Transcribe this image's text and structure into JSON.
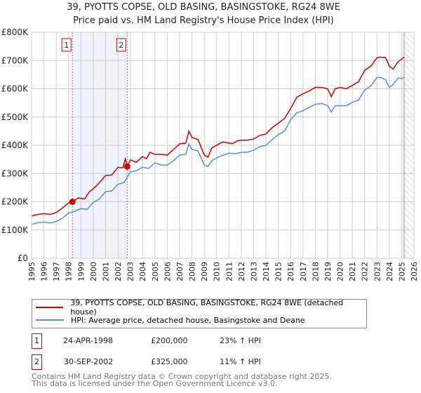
{
  "chart_data": {
    "type": "line",
    "title": "39, PYOTTS COPSE, OLD BASING, BASINGSTOKE, RG24 8WE",
    "subtitle": "Price paid vs. HM Land Registry's House Price Index (HPI)",
    "xlim": [
      1995,
      2026
    ],
    "ylim": [
      0,
      800000
    ],
    "x_ticks": [
      "1995",
      "1996",
      "1997",
      "1998",
      "1999",
      "2000",
      "2001",
      "2002",
      "2003",
      "2004",
      "2005",
      "2006",
      "2007",
      "2008",
      "2009",
      "2010",
      "2011",
      "2012",
      "2013",
      "2014",
      "2015",
      "2016",
      "2017",
      "2018",
      "2019",
      "2020",
      "2021",
      "2022",
      "2023",
      "2024",
      "2025",
      "2026"
    ],
    "y_ticks": [
      {
        "v": 0,
        "l": "£0"
      },
      {
        "v": 100000,
        "l": "£100K"
      },
      {
        "v": 200000,
        "l": "£200K"
      },
      {
        "v": 300000,
        "l": "£300K"
      },
      {
        "v": 400000,
        "l": "£400K"
      },
      {
        "v": 500000,
        "l": "£500K"
      },
      {
        "v": 600000,
        "l": "£600K"
      },
      {
        "v": 700000,
        "l": "£700K"
      },
      {
        "v": 800000,
        "l": "£800K"
      }
    ],
    "grid": true,
    "series": [
      {
        "name": "39, PYOTTS COPSE, OLD BASING, BASINGSTOKE, RG24 8WE (detached house)",
        "color": "#cc0000",
        "x": [
          1995,
          1995.5,
          1996,
          1996.5,
          1997,
          1997.5,
          1998,
          1998.31,
          1998.8,
          1999.3,
          1999.7,
          2000,
          2000.5,
          2001,
          2001.5,
          2002,
          2002.4,
          2002.6,
          2002.75,
          2003,
          2003.5,
          2004,
          2004.3,
          2004.6,
          2005,
          2005.5,
          2006,
          2006.5,
          2007,
          2007.5,
          2007.75,
          2008,
          2008.5,
          2009,
          2009.3,
          2009.6,
          2010,
          2010.5,
          2011,
          2011.3,
          2011.7,
          2012,
          2012.5,
          2013,
          2013.5,
          2014,
          2014.5,
          2015,
          2015.5,
          2016,
          2016.5,
          2017,
          2017.5,
          2018,
          2018.5,
          2019,
          2019.3,
          2019.6,
          2020,
          2020.5,
          2021,
          2021.5,
          2022,
          2022.5,
          2023,
          2023.3,
          2023.7,
          2024,
          2024.3,
          2024.7,
          2025,
          2025.2
        ],
        "y": [
          150000,
          155000,
          158000,
          155000,
          162000,
          178000,
          196000,
          200000,
          214000,
          210000,
          236000,
          246000,
          268000,
          293000,
          295000,
          322000,
          320000,
          352000,
          325000,
          348000,
          340000,
          360000,
          352000,
          375000,
          368000,
          368000,
          365000,
          385000,
          405000,
          408000,
          450000,
          428000,
          420000,
          365000,
          358000,
          390000,
          400000,
          412000,
          408000,
          406000,
          416000,
          418000,
          418000,
          422000,
          435000,
          440000,
          462000,
          478000,
          495000,
          530000,
          570000,
          582000,
          592000,
          605000,
          605000,
          600000,
          572000,
          600000,
          605000,
          600000,
          612000,
          625000,
          665000,
          680000,
          710000,
          712000,
          710000,
          680000,
          670000,
          695000,
          705000,
          712000
        ]
      },
      {
        "name": "HPI: Average price, detached house, Basingstoke and Deane",
        "color": "#5b8fd0",
        "x": [
          1995,
          1995.5,
          1996,
          1996.5,
          1997,
          1997.5,
          1998,
          1998.5,
          1999,
          1999.5,
          2000,
          2000.5,
          2001,
          2001.5,
          2002,
          2002.5,
          2003,
          2003.5,
          2004,
          2004.5,
          2005,
          2005.5,
          2006,
          2006.5,
          2007,
          2007.5,
          2007.75,
          2008,
          2008.5,
          2009,
          2009.3,
          2009.6,
          2010,
          2010.5,
          2011,
          2011.5,
          2012,
          2012.5,
          2013,
          2013.5,
          2014,
          2014.5,
          2015,
          2015.5,
          2016,
          2016.5,
          2017,
          2017.5,
          2018,
          2018.5,
          2019,
          2019.3,
          2019.6,
          2020,
          2020.5,
          2021,
          2021.5,
          2022,
          2022.5,
          2023,
          2023.3,
          2023.7,
          2024,
          2024.3,
          2024.7,
          2025,
          2025.2
        ],
        "y": [
          120000,
          126000,
          128000,
          125000,
          130000,
          142000,
          160000,
          166000,
          176000,
          173000,
          198000,
          210000,
          236000,
          238000,
          262000,
          268000,
          305000,
          310000,
          322000,
          318000,
          338000,
          330000,
          330000,
          345000,
          365000,
          368000,
          405000,
          385000,
          380000,
          330000,
          325000,
          345000,
          355000,
          365000,
          372000,
          370000,
          375000,
          376000,
          382000,
          395000,
          400000,
          420000,
          438000,
          450000,
          490000,
          515000,
          522000,
          535000,
          545000,
          548000,
          540000,
          518000,
          540000,
          540000,
          540000,
          552000,
          560000,
          595000,
          610000,
          640000,
          640000,
          632000,
          605000,
          615000,
          638000,
          636000,
          640000
        ]
      }
    ],
    "sales": [
      {
        "label": "1",
        "x": 1998.31,
        "y": 200000
      },
      {
        "label": "2",
        "x": 2002.75,
        "y": 325000
      }
    ]
  },
  "legend": {
    "items": [
      "39, PYOTTS COPSE, OLD BASING, BASINGSTOKE, RG24 8WE (detached house)",
      "HPI: Average price, detached house, Basingstoke and Deane"
    ]
  },
  "table": [
    {
      "num": "1",
      "date": "24-APR-1998",
      "price": "£200,000",
      "hpi": "23% ↑ HPI"
    },
    {
      "num": "2",
      "date": "30-SEP-2002",
      "price": "£325,000",
      "hpi": "11% ↑ HPI"
    }
  ],
  "footer": {
    "line1": "Contains HM Land Registry data © Crown copyright and database right 2025.",
    "line2": "This data is licensed under the Open Government Licence v3.0."
  }
}
